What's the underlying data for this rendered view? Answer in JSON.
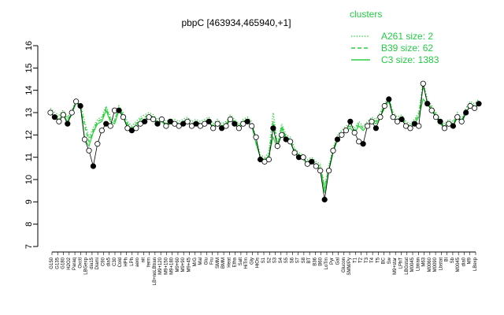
{
  "chart_data": {
    "type": "line",
    "title": "pbpC [463934,465940,+1]",
    "xlabel": "",
    "ylabel": "",
    "ylim": [
      7,
      16
    ],
    "yticks": [
      7,
      8,
      9,
      10,
      11,
      12,
      13,
      14,
      15,
      16
    ],
    "grid": false,
    "legend": {
      "title": "clusters",
      "placement": "top-right",
      "entries": [
        {
          "label": "A261 size: 2",
          "style": "dotted"
        },
        {
          "label": "B39 size: 62",
          "style": "dashed"
        },
        {
          "label": "C3 size: 1383",
          "style": "solid"
        }
      ]
    },
    "x_tick_labels": [
      "G150",
      "G135",
      "G180",
      "H2O2",
      "Paraq",
      "Oxctl",
      "LBGexp",
      "dia15",
      "Diami",
      "C90",
      "dia5",
      "C30",
      "Cold",
      "HPh",
      "LPh",
      "aero",
      "nit",
      "ferm",
      "LB+noLBtran",
      "M9+120",
      "M9+150",
      "M9+180",
      "M9+60",
      "M9+90",
      "M9+45",
      "M/G",
      "Mal",
      "Glu",
      "Fru",
      "SMM",
      "BMM",
      "Heat",
      "Etha",
      "Salt",
      "HiTm",
      "Gly",
      "HiOs",
      "S1",
      "S2",
      "S3",
      "S4",
      "S5",
      "S6",
      "S7",
      "S8",
      "BT",
      "B36",
      "B60",
      "LoTm",
      "Pyr",
      "Gal",
      "Glucon",
      "SMM/Py",
      "T1",
      "T2",
      "T3",
      "T4",
      "T5",
      "BC",
      "Sw",
      "M9+star",
      "LPhT",
      "LBGstat",
      "M0045",
      "Lbtran",
      "M63",
      "M0060",
      "M0090",
      "Lbstat",
      "Bl",
      "Sb",
      "M0045",
      "dia0",
      "M9",
      "LBexp"
    ],
    "x_tick_labels_note": "dense overlapping tick labels; readable subset",
    "series": [
      {
        "style": "solid",
        "values": [
          13.0,
          12.8,
          12.7,
          12.9,
          12.6,
          12.9,
          13.5,
          13.3,
          11.8,
          11.5,
          12.1,
          12.5,
          12.6,
          13.1,
          12.6,
          12.5,
          13.1,
          12.8,
          12.4,
          12.2,
          12.4,
          12.6,
          12.7,
          12.8,
          12.7,
          12.5,
          12.6,
          12.4,
          12.5,
          12.5,
          12.4,
          12.5,
          12.6,
          12.4,
          12.5,
          12.4,
          12.5,
          12.6,
          12.3,
          12.5,
          12.3,
          12.4,
          12.7,
          12.5,
          12.3,
          12.5,
          12.6,
          12.4,
          11.6,
          11.0,
          10.8,
          11.1,
          11.9,
          11.4,
          12.3,
          11.8,
          11.7,
          11.2,
          11.0,
          10.9,
          10.7,
          10.8,
          10.6,
          10.5,
          9.4,
          10.4,
          11.2,
          11.8,
          12.0,
          12.2,
          12.3,
          12.1,
          12.4,
          12.2,
          12.4,
          12.6,
          12.5,
          12.8,
          13.2,
          13.5,
          12.8,
          12.6,
          12.7,
          12.4,
          12.3,
          12.5,
          12.8,
          13.6,
          13.4,
          13.1,
          12.8,
          12.5,
          12.3,
          12.5,
          12.4,
          12.8,
          12.5,
          13.0,
          13.3,
          13.2,
          13.4
        ]
      },
      {
        "style": "dashed",
        "values": [
          13.1,
          12.9,
          12.8,
          13.0,
          12.7,
          13.0,
          13.4,
          13.3,
          12.4,
          11.7,
          12.2,
          12.6,
          12.7,
          13.2,
          12.7,
          12.6,
          13.2,
          12.9,
          12.5,
          12.3,
          12.5,
          12.7,
          12.8,
          12.9,
          12.8,
          12.6,
          12.7,
          12.5,
          12.6,
          12.6,
          12.5,
          12.6,
          12.7,
          12.5,
          12.6,
          12.5,
          12.6,
          12.7,
          12.4,
          12.6,
          12.4,
          12.5,
          12.8,
          12.6,
          12.4,
          12.6,
          12.7,
          12.5,
          11.7,
          11.0,
          10.9,
          11.1,
          12.6,
          11.5,
          12.4,
          11.9,
          11.8,
          11.3,
          11.1,
          11.0,
          10.8,
          10.9,
          10.7,
          10.6,
          9.6,
          10.5,
          11.3,
          11.9,
          12.1,
          12.3,
          12.4,
          12.2,
          12.5,
          12.3,
          12.5,
          12.7,
          12.6,
          12.9,
          13.3,
          13.6,
          12.9,
          12.7,
          12.8,
          12.5,
          12.4,
          12.6,
          12.9,
          14.2,
          13.5,
          13.2,
          12.9,
          12.6,
          12.4,
          12.6,
          12.5,
          12.9,
          12.6,
          13.1,
          13.4,
          13.3,
          13.5
        ]
      },
      {
        "style": "dotted",
        "values": [
          13.2,
          13.0,
          12.9,
          13.1,
          12.8,
          13.1,
          13.6,
          13.4,
          12.6,
          11.9,
          12.3,
          12.7,
          12.8,
          13.3,
          12.8,
          12.7,
          13.3,
          13.0,
          12.6,
          12.4,
          12.6,
          12.8,
          12.9,
          13.0,
          12.9,
          12.7,
          12.8,
          12.6,
          12.7,
          12.7,
          12.6,
          12.7,
          12.8,
          12.6,
          12.7,
          12.6,
          12.7,
          12.8,
          12.5,
          12.7,
          12.5,
          12.6,
          12.9,
          12.7,
          12.5,
          12.7,
          12.8,
          12.6,
          11.8,
          11.1,
          11.0,
          11.2,
          13.0,
          11.6,
          12.5,
          12.0,
          11.9,
          11.4,
          11.2,
          11.1,
          10.9,
          11.0,
          10.8,
          10.7,
          9.7,
          10.6,
          11.4,
          12.0,
          12.2,
          12.4,
          12.5,
          12.3,
          12.6,
          12.4,
          12.6,
          12.8,
          12.7,
          13.0,
          13.4,
          13.7,
          13.0,
          12.8,
          12.9,
          12.6,
          12.5,
          12.7,
          13.0,
          14.4,
          13.6,
          13.3,
          13.0,
          12.7,
          12.5,
          12.7,
          12.6,
          13.0,
          12.7,
          13.2,
          13.5,
          13.4,
          13.6
        ]
      }
    ],
    "points": [
      13.0,
      12.8,
      12.6,
      12.9,
      12.5,
      13.0,
      13.5,
      13.3,
      11.8,
      11.3,
      10.6,
      11.6,
      12.2,
      12.5,
      12.4,
      13.1,
      13.1,
      12.8,
      12.3,
      12.2,
      12.3,
      12.5,
      12.6,
      12.8,
      12.7,
      12.5,
      12.7,
      12.4,
      12.6,
      12.5,
      12.4,
      12.5,
      12.6,
      12.4,
      12.5,
      12.4,
      12.5,
      12.6,
      12.3,
      12.5,
      12.3,
      12.4,
      12.7,
      12.5,
      12.3,
      12.5,
      12.6,
      12.4,
      11.9,
      10.9,
      10.8,
      10.9,
      12.3,
      11.5,
      12.0,
      11.8,
      11.7,
      11.2,
      11.0,
      11.0,
      10.7,
      10.8,
      10.6,
      10.4,
      9.1,
      10.4,
      11.3,
      11.8,
      12.0,
      12.2,
      12.6,
      12.1,
      11.7,
      11.6,
      12.4,
      12.6,
      12.3,
      12.8,
      13.3,
      13.6,
      12.8,
      12.6,
      12.7,
      12.4,
      12.3,
      12.5,
      12.4,
      14.3,
      13.4,
      13.1,
      12.8,
      12.6,
      12.3,
      12.5,
      12.4,
      12.8,
      12.6,
      13.0,
      13.3,
      13.2,
      13.4
    ]
  }
}
